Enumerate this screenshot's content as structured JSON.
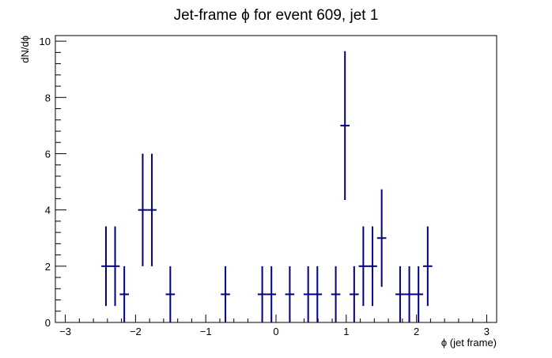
{
  "chart_data": {
    "type": "scatter",
    "title": "Jet-frame   ϕ for event 609, jet 1",
    "xlabel": "ϕ (jet frame)",
    "ylabel": "dN/dϕ",
    "xlim": [
      -3.1416,
      3.1416
    ],
    "ylim": [
      0,
      10.2
    ],
    "bin_width": 0.1309,
    "x_ticks": [
      {
        "value": -3,
        "label": "−3"
      },
      {
        "value": -2,
        "label": "−2"
      },
      {
        "value": -1,
        "label": "−1"
      },
      {
        "value": 0,
        "label": "0"
      },
      {
        "value": 1,
        "label": "1"
      },
      {
        "value": 2,
        "label": "2"
      },
      {
        "value": 3,
        "label": "3"
      }
    ],
    "y_ticks": [
      {
        "value": 0,
        "label": "0"
      },
      {
        "value": 2,
        "label": "2"
      },
      {
        "value": 4,
        "label": "4"
      },
      {
        "value": 6,
        "label": "6"
      },
      {
        "value": 8,
        "label": "8"
      },
      {
        "value": 10,
        "label": "10"
      }
    ],
    "grid": false,
    "legend": "none",
    "series_color": "#000080",
    "points": [
      {
        "x": -2.421,
        "y": 2
      },
      {
        "x": -2.291,
        "y": 2
      },
      {
        "x": -2.16,
        "y": 1
      },
      {
        "x": -1.898,
        "y": 4
      },
      {
        "x": -1.767,
        "y": 4
      },
      {
        "x": -1.505,
        "y": 1
      },
      {
        "x": -0.72,
        "y": 1
      },
      {
        "x": -0.196,
        "y": 1
      },
      {
        "x": -0.065,
        "y": 1
      },
      {
        "x": 0.196,
        "y": 1
      },
      {
        "x": 0.458,
        "y": 1
      },
      {
        "x": 0.589,
        "y": 1
      },
      {
        "x": 0.851,
        "y": 1
      },
      {
        "x": 0.982,
        "y": 7
      },
      {
        "x": 1.113,
        "y": 1
      },
      {
        "x": 1.243,
        "y": 2
      },
      {
        "x": 1.374,
        "y": 2
      },
      {
        "x": 1.505,
        "y": 3
      },
      {
        "x": 1.767,
        "y": 1
      },
      {
        "x": 1.898,
        "y": 1
      },
      {
        "x": 2.029,
        "y": 1
      },
      {
        "x": 2.16,
        "y": 2
      }
    ]
  }
}
